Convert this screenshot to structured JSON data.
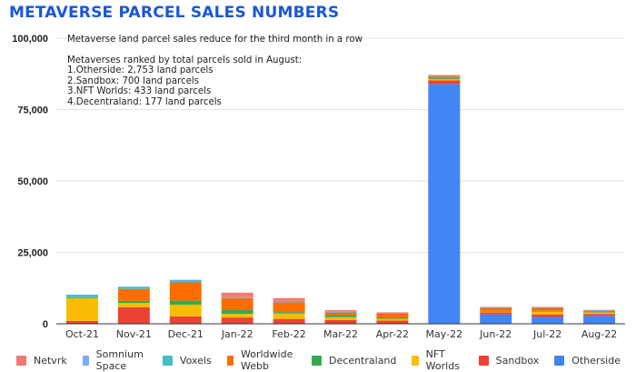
{
  "title": "METAVERSE PARCEL SALES NUMBERS",
  "notes": {
    "headline": "Metaverse land parcel sales reduce for the third month in a row",
    "ranking_title": "Metaverses ranked by total parcels sold in August:",
    "ranking": [
      "1.Otherside: 2,753 land parcels",
      "2.Sandbox: 700 land parcels",
      "3.NFT Worlds: 433 land parcels",
      "4.Decentraland: 177 land parcels"
    ]
  },
  "chart_data": {
    "type": "bar",
    "stacked": true,
    "title": "METAVERSE PARCEL SALES NUMBERS",
    "xlabel": "",
    "ylabel": "",
    "ylim": [
      0,
      100000
    ],
    "yticks": [
      0,
      25000,
      50000,
      75000,
      100000
    ],
    "ytick_labels": [
      "0",
      "25,000",
      "50,000",
      "75,000",
      "100,000"
    ],
    "grid": true,
    "legend_position": "bottom",
    "categories": [
      "Oct-21",
      "Nov-21",
      "Dec-21",
      "Jan-22",
      "Feb-22",
      "Mar-22",
      "Apr-22",
      "May-22",
      "Jun-22",
      "Jul-22",
      "Aug-22"
    ],
    "series": [
      {
        "name": "Otherside",
        "color": "#4285f4",
        "values": [
          0,
          0,
          0,
          0,
          0,
          0,
          0,
          84000,
          3300,
          2400,
          2753
        ]
      },
      {
        "name": "Sandbox",
        "color": "#ea4335",
        "values": [
          1000,
          5800,
          2600,
          2200,
          1700,
          1300,
          1100,
          1200,
          700,
          900,
          700
        ]
      },
      {
        "name": "NFT Worlds",
        "color": "#fbbc04",
        "values": [
          8000,
          1500,
          4100,
          1300,
          1900,
          1000,
          600,
          500,
          300,
          1000,
          433
        ]
      },
      {
        "name": "Decentraland",
        "color": "#34a853",
        "values": [
          300,
          700,
          1400,
          1400,
          500,
          700,
          200,
          400,
          200,
          200,
          177
        ]
      },
      {
        "name": "Worldwide Webb",
        "color": "#ff6d01",
        "values": [
          0,
          4200,
          6400,
          4100,
          3400,
          1000,
          1800,
          500,
          1100,
          1100,
          500
        ]
      },
      {
        "name": "Voxels",
        "color": "#46bdc6",
        "values": [
          800,
          700,
          800,
          200,
          400,
          100,
          100,
          300,
          100,
          100,
          100
        ]
      },
      {
        "name": "Somnium Space",
        "color": "#7baaf7",
        "values": [
          100,
          100,
          100,
          100,
          100,
          100,
          100,
          100,
          100,
          100,
          100
        ]
      },
      {
        "name": "Netvrk",
        "color": "#f07b72",
        "values": [
          0,
          0,
          0,
          1600,
          1000,
          600,
          100,
          100,
          100,
          100,
          100
        ]
      }
    ]
  }
}
